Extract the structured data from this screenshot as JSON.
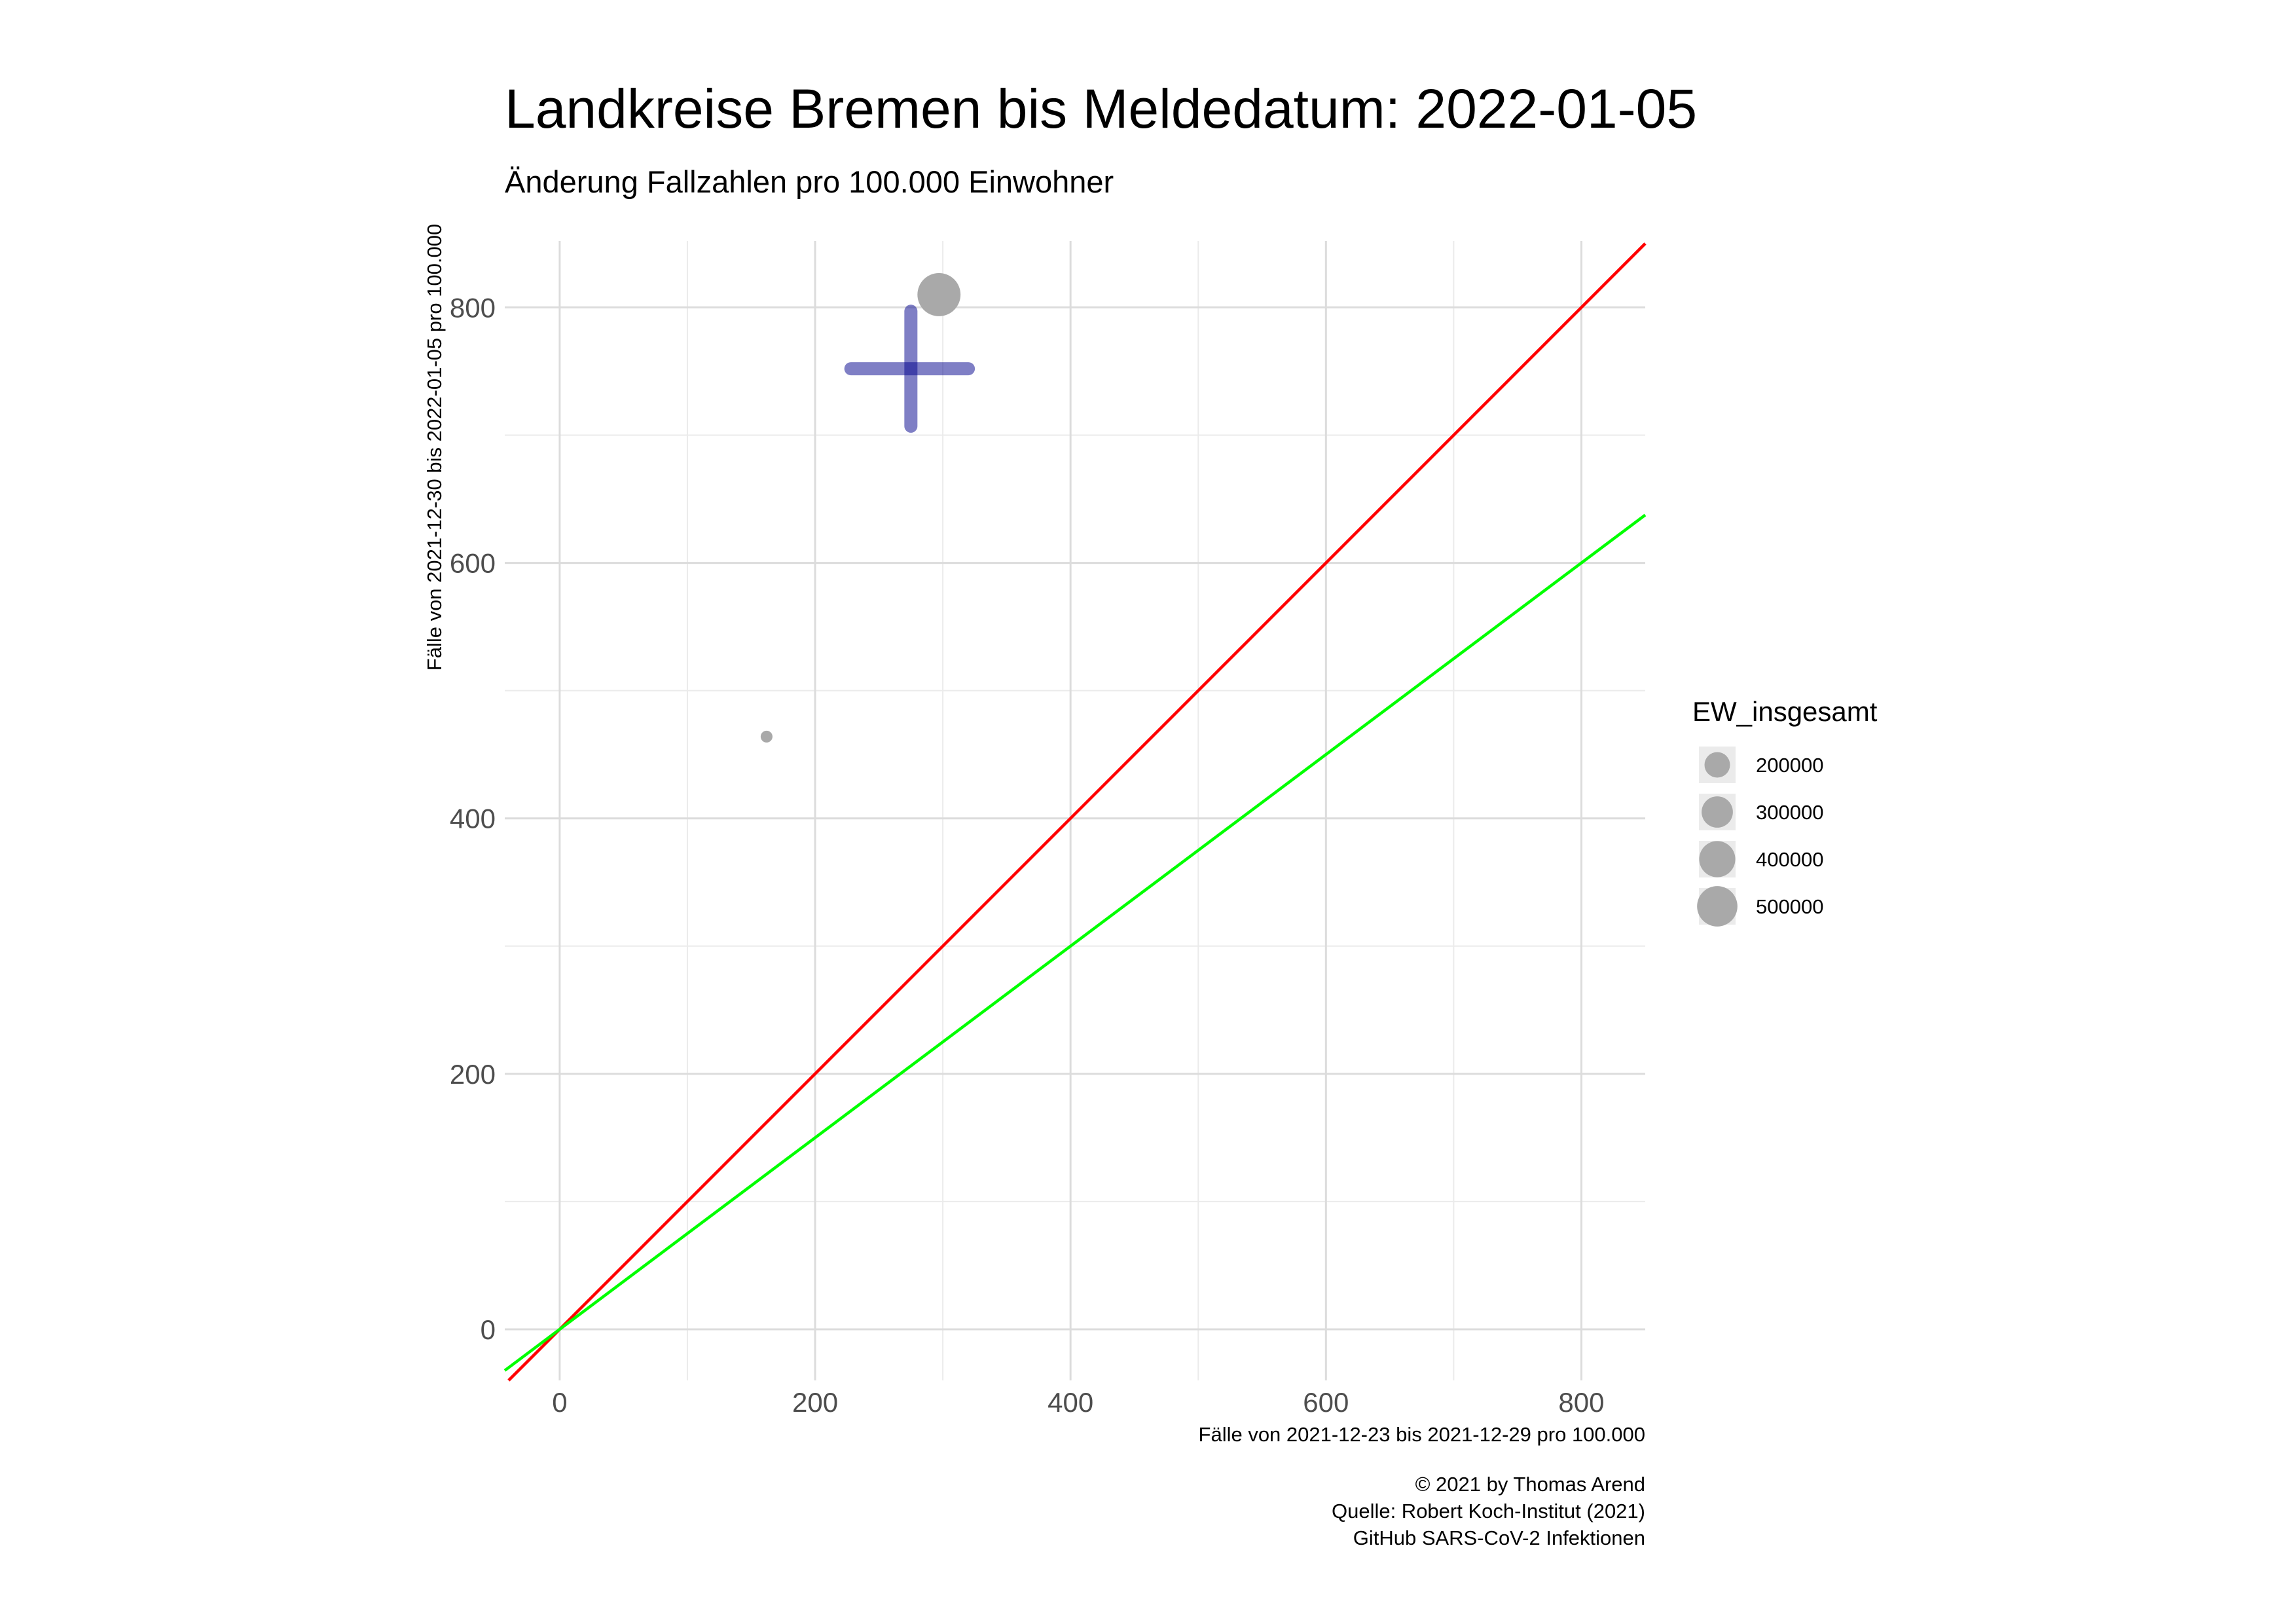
{
  "chart_data": {
    "type": "scatter",
    "title": "Landkreise Bremen bis Meldedatum: 2022-01-05",
    "subtitle": "Änderung Fallzahlen pro 100.000 Einwohner",
    "xlabel": "Fälle von 2021-12-23 bis 2021-12-29 pro 100.000",
    "ylabel": "Fälle von 2021-12-30 bis 2022-01-05 pro 100.000",
    "xlim": [
      -43,
      850
    ],
    "ylim": [
      -40,
      852
    ],
    "x_ticks": [
      0,
      200,
      400,
      600,
      800
    ],
    "y_ticks": [
      0,
      200,
      400,
      600,
      800
    ],
    "grid": true,
    "points": [
      {
        "x": 162,
        "y": 464,
        "size": 43000
      },
      {
        "x": 297,
        "y": 810,
        "size": 570000
      }
    ],
    "crosshair": {
      "x": 275,
      "y": 752,
      "x_range": [
        228,
        320
      ],
      "y_range": [
        707,
        797
      ],
      "color": "#00008b"
    },
    "reference_lines": [
      {
        "slope": 1.0,
        "color": "#ff0000"
      },
      {
        "slope": 0.75,
        "color": "#00ff00"
      }
    ],
    "point_color": "#a9a9a9",
    "legend": {
      "title": "EW_insgesamt",
      "position": "right",
      "items": [
        {
          "label": "200000",
          "size": 200000
        },
        {
          "label": "300000",
          "size": 300000
        },
        {
          "label": "400000",
          "size": 400000
        },
        {
          "label": "500000",
          "size": 500000
        }
      ]
    },
    "caption": [
      "© 2021 by Thomas Arend",
      "Quelle: Robert Koch-Institut (2021)",
      "GitHub SARS-CoV-2 Infektionen"
    ]
  }
}
